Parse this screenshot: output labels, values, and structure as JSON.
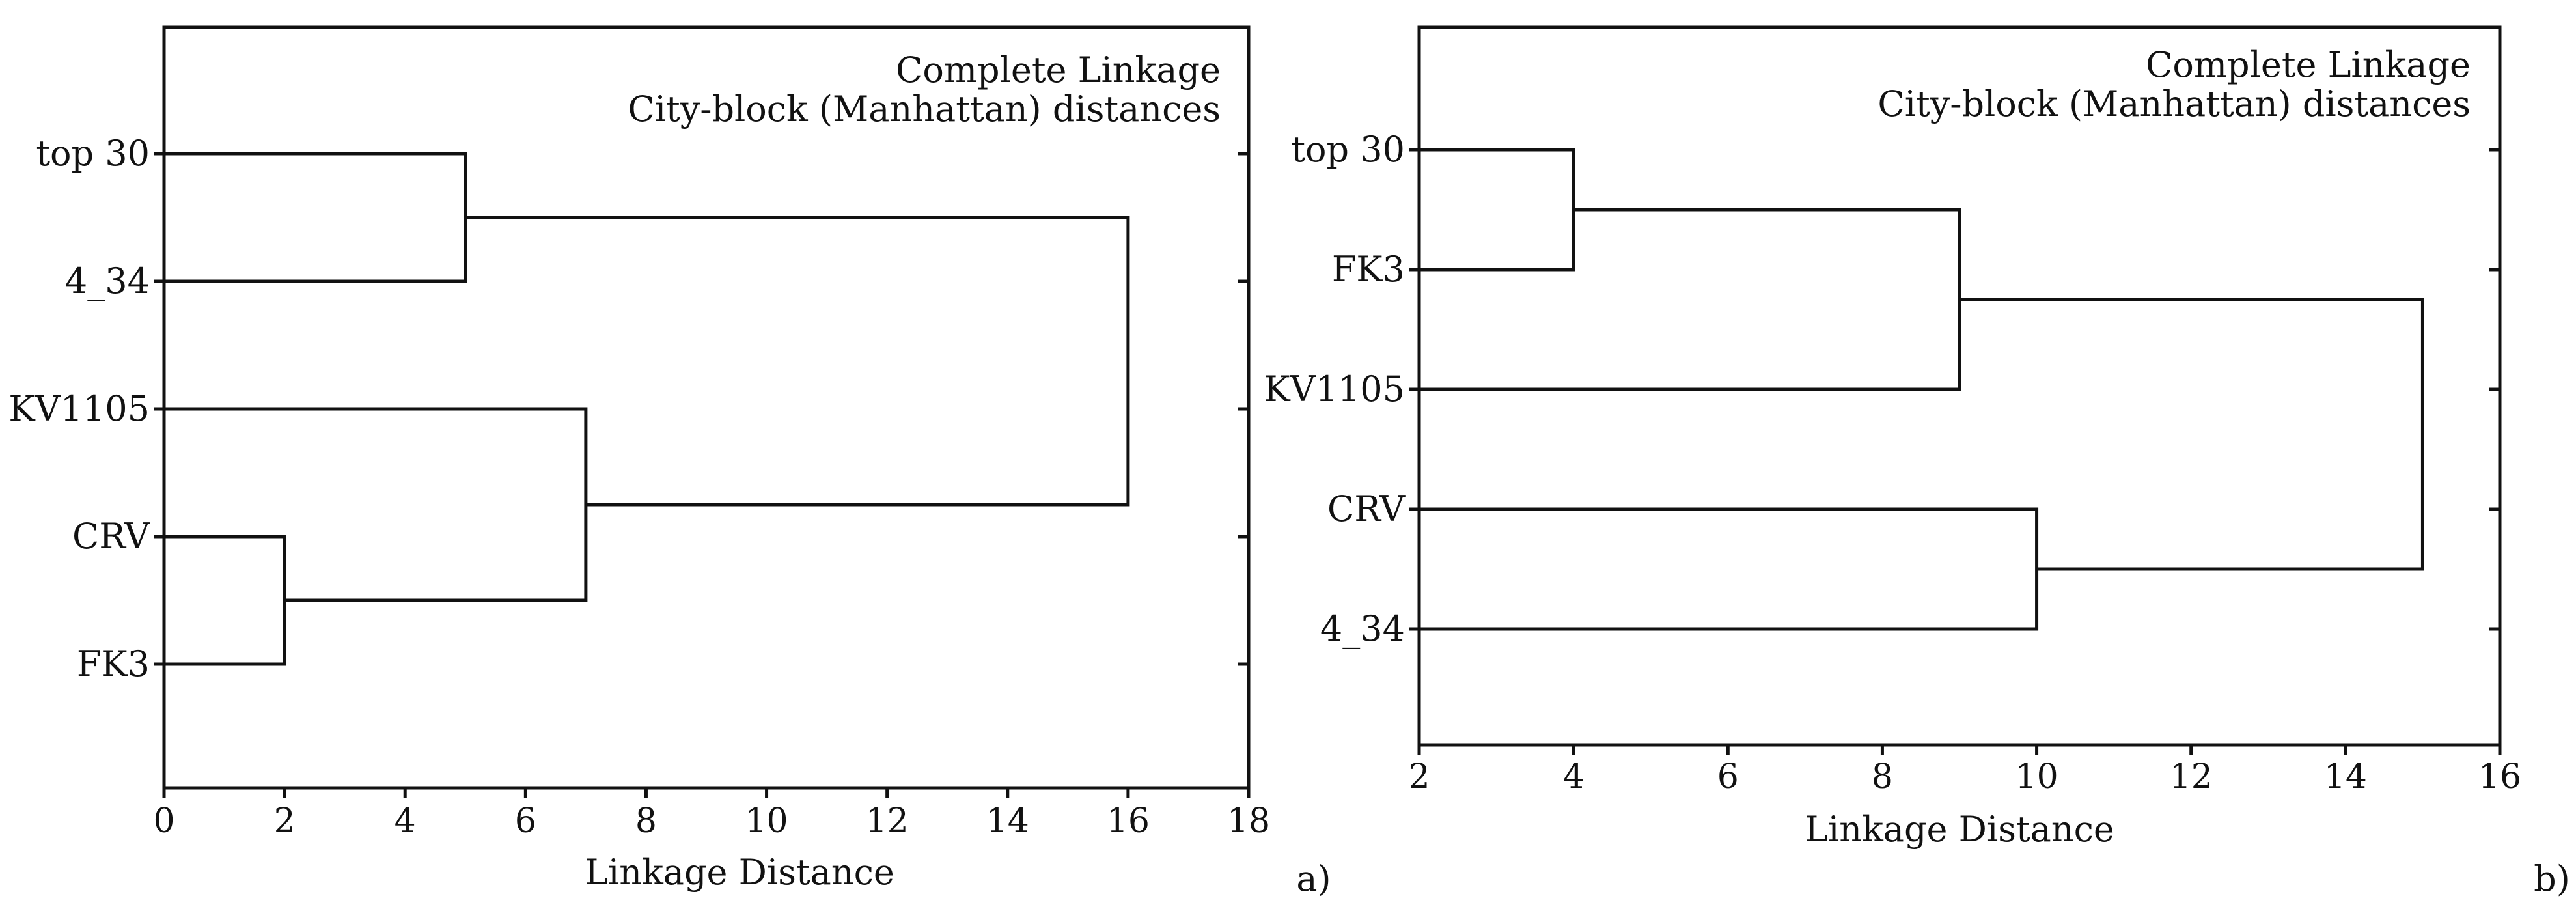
{
  "chart_data": [
    {
      "type": "dendrogram",
      "panel_label": "a)",
      "title": [
        "Complete Linkage",
        "City-block (Manhattan) distances"
      ],
      "xlabel": "Linkage Distance",
      "xlim": [
        0,
        18
      ],
      "xticks": [
        0,
        2,
        4,
        6,
        8,
        10,
        12,
        14,
        16,
        18
      ],
      "leaves": [
        "top 30",
        "4_34",
        "KV1105",
        "CRV",
        "FK3"
      ],
      "merges": [
        {
          "id": "m1",
          "children": [
            "CRV",
            "FK3"
          ],
          "distance": 2
        },
        {
          "id": "m2",
          "children": [
            "top 30",
            "4_34"
          ],
          "distance": 5
        },
        {
          "id": "m3",
          "children": [
            "KV1105",
            "m1"
          ],
          "distance": 7
        },
        {
          "id": "m4",
          "children": [
            "m2",
            "m3"
          ],
          "distance": 16
        }
      ]
    },
    {
      "type": "dendrogram",
      "panel_label": "b)",
      "title": [
        "Complete Linkage",
        "City-block (Manhattan) distances"
      ],
      "xlabel": "Linkage Distance",
      "xlim": [
        2,
        16
      ],
      "xticks": [
        2,
        4,
        6,
        8,
        10,
        12,
        14,
        16
      ],
      "leaves": [
        "top 30",
        "FK3",
        "KV1105",
        "CRV",
        "4_34"
      ],
      "merges": [
        {
          "id": "m1",
          "children": [
            "top 30",
            "FK3"
          ],
          "distance": 4
        },
        {
          "id": "m2",
          "children": [
            "m1",
            "KV1105"
          ],
          "distance": 9
        },
        {
          "id": "m3",
          "children": [
            "CRV",
            "4_34"
          ],
          "distance": 10
        },
        {
          "id": "m4",
          "children": [
            "m2",
            "m3"
          ],
          "distance": 15
        }
      ]
    }
  ]
}
